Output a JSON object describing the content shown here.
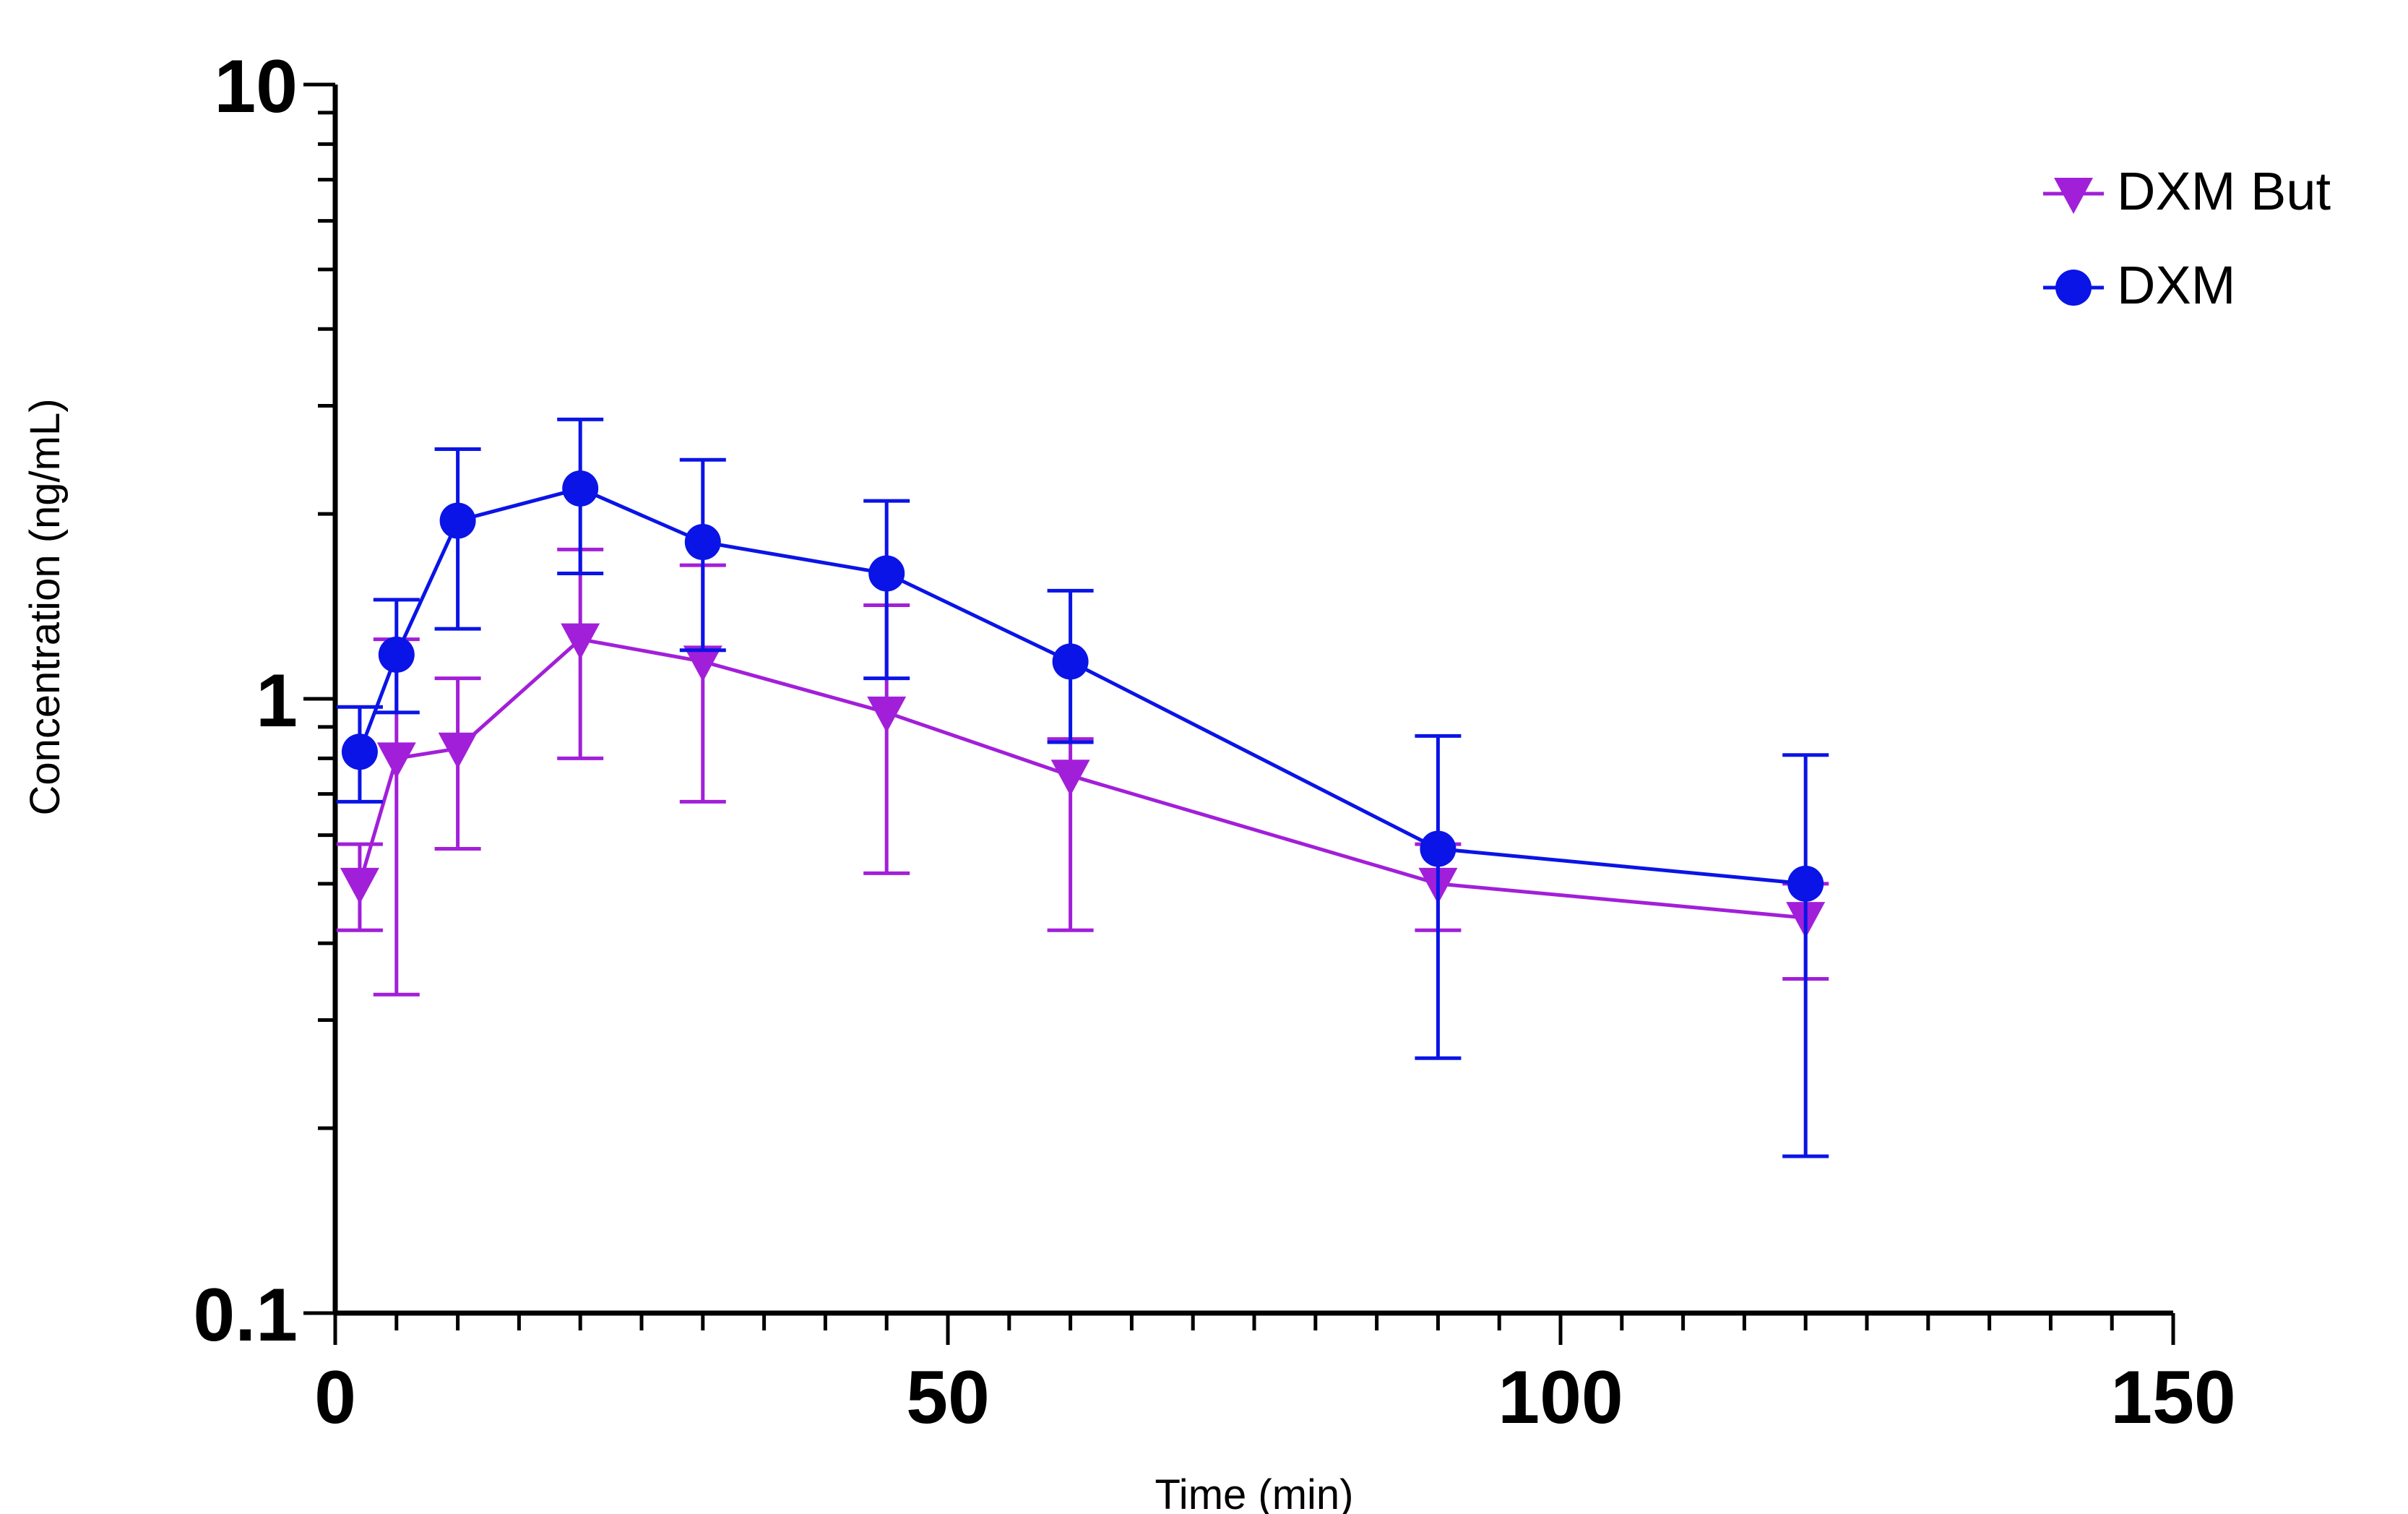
{
  "chart_data": {
    "type": "line",
    "title": "",
    "xlabel": "Time (min)",
    "ylabel": "Concentration (ng/mL)",
    "xlim": [
      0,
      150
    ],
    "ylim": [
      0.1,
      10
    ],
    "yscale": "log",
    "x_ticks": [
      0,
      50,
      100,
      150
    ],
    "x_tick_labels": [
      "0",
      "50",
      "100",
      "150"
    ],
    "y_ticks": [
      0.1,
      1,
      10
    ],
    "y_tick_labels": [
      "0.1",
      "1",
      "10"
    ],
    "grid": false,
    "legend_position": "top-right",
    "series": [
      {
        "name": "DXM But",
        "color": "#a21fd9",
        "marker": "triangle-down",
        "x": [
          2,
          5,
          10,
          20,
          30,
          45,
          60,
          90,
          120
        ],
        "y": [
          0.5,
          0.8,
          0.83,
          1.25,
          1.15,
          0.95,
          0.75,
          0.5,
          0.44
        ],
        "err_low": [
          0.42,
          0.33,
          0.57,
          0.8,
          0.68,
          0.52,
          0.42,
          0.42,
          0.35
        ],
        "err_high": [
          0.58,
          1.25,
          1.08,
          1.75,
          1.65,
          1.42,
          0.86,
          0.58,
          0.5
        ]
      },
      {
        "name": "DXM",
        "color": "#0a14e6",
        "marker": "circle",
        "x": [
          2,
          5,
          10,
          20,
          30,
          45,
          60,
          90,
          120
        ],
        "y": [
          0.82,
          1.18,
          1.95,
          2.2,
          1.8,
          1.6,
          1.15,
          0.57,
          0.5
        ],
        "err_low": [
          0.68,
          0.95,
          1.3,
          1.6,
          1.2,
          1.08,
          0.85,
          0.26,
          0.18
        ],
        "err_high": [
          0.97,
          1.45,
          2.55,
          2.85,
          2.45,
          2.1,
          1.5,
          0.87,
          0.81
        ]
      }
    ]
  }
}
